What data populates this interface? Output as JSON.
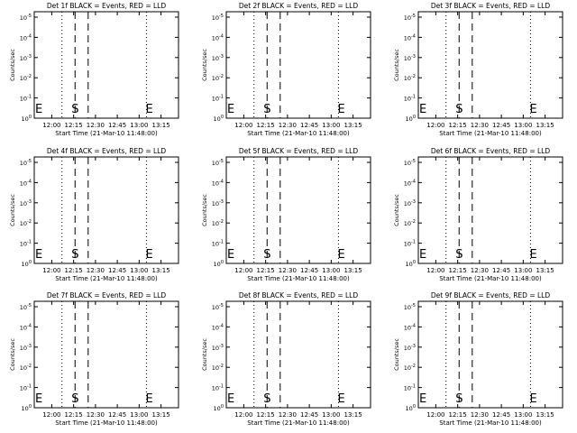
{
  "figure": {
    "xlabel": "Start Time (21-Mar-10 11:48:00)",
    "ylabel": "Counts/sec",
    "x_ticks": [
      "12:00",
      "12:15",
      "12:30",
      "12:45",
      "13:00",
      "13:15"
    ],
    "y_tick_exponents": [
      "0",
      "-1",
      "-2",
      "-3",
      "-4",
      "-5"
    ],
    "y_tick_base": "10",
    "marker_start": "S",
    "marker_end": "E",
    "colors": {
      "axes": "#000000",
      "background": "#ffffff",
      "events": "#000000",
      "lld": "#ff0000"
    }
  },
  "chart_data": [
    {
      "type": "line",
      "title": "Det 1f BLACK = Events, RED = LLD",
      "series": [],
      "dotted_lines_x": [
        "11:48",
        "12:07",
        "13:05",
        "13:27"
      ],
      "dashed_lines_x": [
        "12:16",
        "12:25"
      ],
      "marker_S_x": "12:16",
      "marker_E_x": "11:48",
      "marker_E2_x": "13:05",
      "ylim": [
        1,
        1e-05
      ],
      "yscale": "log",
      "grid": false
    },
    {
      "type": "line",
      "title": "Det 2f BLACK = Events, RED = LLD",
      "series": [],
      "dotted_lines_x": [
        "11:48",
        "12:07",
        "13:05",
        "13:27"
      ],
      "dashed_lines_x": [
        "12:16",
        "12:25"
      ],
      "marker_S_x": "12:16",
      "marker_E_x": "11:48",
      "marker_E2_x": "13:05",
      "ylim": [
        1,
        1e-05
      ],
      "yscale": "log",
      "grid": false
    },
    {
      "type": "line",
      "title": "Det 3f BLACK = Events, RED = LLD",
      "series": [],
      "dotted_lines_x": [
        "11:48",
        "12:07",
        "13:05",
        "13:27"
      ],
      "dashed_lines_x": [
        "12:16",
        "12:25"
      ],
      "marker_S_x": "12:16",
      "marker_E_x": "11:48",
      "marker_E2_x": "13:05",
      "ylim": [
        1,
        1e-05
      ],
      "yscale": "log",
      "grid": false
    },
    {
      "type": "line",
      "title": "Det 4f BLACK = Events, RED = LLD",
      "series": [],
      "dotted_lines_x": [
        "11:48",
        "12:07",
        "13:05",
        "13:27"
      ],
      "dashed_lines_x": [
        "12:16",
        "12:25"
      ],
      "marker_S_x": "12:16",
      "marker_E_x": "11:48",
      "marker_E2_x": "13:05",
      "ylim": [
        1,
        1e-05
      ],
      "yscale": "log",
      "grid": false
    },
    {
      "type": "line",
      "title": "Det 5f BLACK = Events, RED = LLD",
      "series": [],
      "dotted_lines_x": [
        "11:48",
        "12:07",
        "13:05",
        "13:27"
      ],
      "dashed_lines_x": [
        "12:16",
        "12:25"
      ],
      "marker_S_x": "12:16",
      "marker_E_x": "11:48",
      "marker_E2_x": "13:05",
      "ylim": [
        1,
        1e-05
      ],
      "yscale": "log",
      "grid": false
    },
    {
      "type": "line",
      "title": "Det 6f BLACK = Events, RED = LLD",
      "series": [],
      "dotted_lines_x": [
        "11:48",
        "12:07",
        "13:05",
        "13:27"
      ],
      "dashed_lines_x": [
        "12:16",
        "12:25"
      ],
      "marker_S_x": "12:16",
      "marker_E_x": "11:48",
      "marker_E2_x": "13:05",
      "ylim": [
        1,
        1e-05
      ],
      "yscale": "log",
      "grid": false
    },
    {
      "type": "line",
      "title": "Det 7f BLACK = Events, RED = LLD",
      "series": [],
      "dotted_lines_x": [
        "11:48",
        "12:07",
        "13:05",
        "13:27"
      ],
      "dashed_lines_x": [
        "12:16",
        "12:25"
      ],
      "marker_S_x": "12:16",
      "marker_E_x": "11:48",
      "marker_E2_x": "13:05",
      "ylim": [
        1,
        1e-05
      ],
      "yscale": "log",
      "grid": false
    },
    {
      "type": "line",
      "title": "Det 8f BLACK = Events, RED = LLD",
      "series": [],
      "dotted_lines_x": [
        "11:48",
        "12:07",
        "13:05",
        "13:27"
      ],
      "dashed_lines_x": [
        "12:16",
        "12:25"
      ],
      "marker_S_x": "12:16",
      "marker_E_x": "11:48",
      "marker_E2_x": "13:05",
      "ylim": [
        1,
        1e-05
      ],
      "yscale": "log",
      "grid": false
    },
    {
      "type": "line",
      "title": "Det 9f BLACK = Events, RED = LLD",
      "series": [],
      "dotted_lines_x": [
        "11:48",
        "12:07",
        "13:05",
        "13:27"
      ],
      "dashed_lines_x": [
        "12:16",
        "12:25"
      ],
      "marker_S_x": "12:16",
      "marker_E_x": "11:48",
      "marker_E2_x": "13:05",
      "ylim": [
        1,
        1e-05
      ],
      "yscale": "log",
      "grid": false
    }
  ]
}
